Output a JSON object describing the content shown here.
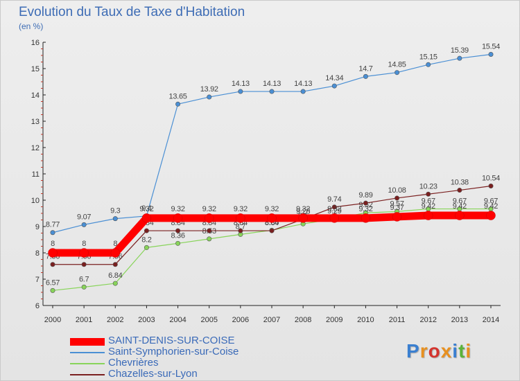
{
  "title": "Evolution du Taux de Taxe d'Habitation",
  "subtitle": "(en %)",
  "logo_text": "Proxiti",
  "chart_data": {
    "type": "line",
    "title": "Evolution du Taux de Taxe d'Habitation",
    "ylabel": "(en %)",
    "xlabel": "",
    "x": [
      "2000",
      "2001",
      "2002",
      "2003",
      "2004",
      "2005",
      "2006",
      "2007",
      "2008",
      "2009",
      "2010",
      "2011",
      "2012",
      "2013",
      "2014"
    ],
    "ylim": [
      6,
      16
    ],
    "yticks": [
      "6",
      "7",
      "8",
      "9",
      "10",
      "11",
      "12",
      "13",
      "14",
      "15",
      "16"
    ],
    "grid": false,
    "legend_position": "bottom-left",
    "series": [
      {
        "name": "SAINT-DENIS-SUR-COISE",
        "color": "#ff0000",
        "values": [
          8,
          8,
          8,
          9.32,
          9.32,
          9.32,
          9.32,
          9.32,
          9.32,
          9.32,
          9.32,
          9.37,
          9.42,
          9.42,
          9.42
        ],
        "labels": [
          "8",
          "8",
          "8",
          "9.32",
          "9.32",
          "9.32",
          "9.32",
          "9.32",
          "9.32",
          "9.32",
          "9.32",
          "9.37",
          "9.42",
          "9.42",
          "9.42"
        ]
      },
      {
        "name": "Saint-Symphorien-sur-Coise",
        "color": "#4a8fd4",
        "values": [
          8.77,
          9.07,
          9.3,
          9.4,
          13.65,
          13.92,
          14.13,
          14.13,
          14.13,
          14.34,
          14.7,
          14.85,
          15.15,
          15.39,
          15.54
        ],
        "labels": [
          "8.77",
          "9.07",
          "9.3",
          "9.4",
          "13.65",
          "13.92",
          "14.13",
          "14.13",
          "14.13",
          "14.34",
          "14.7",
          "14.85",
          "15.15",
          "15.39",
          "15.54"
        ]
      },
      {
        "name": "Chevrières",
        "color": "#88d45a",
        "values": [
          6.57,
          6.7,
          6.84,
          8.2,
          8.36,
          8.53,
          8.7,
          8.86,
          9.1,
          9.29,
          9.52,
          9.57,
          9.67,
          9.67,
          9.67
        ],
        "labels": [
          "6.57",
          "6.7",
          "6.84",
          "8.2",
          "8.36",
          "8.53",
          "8.7",
          "8.86",
          "9.1",
          "9.29",
          "9.52",
          "9.57",
          "9.67",
          "9.67",
          "9.67"
        ]
      },
      {
        "name": "Chazelles-sur-Lyon",
        "color": "#7a1f1f",
        "values": [
          7.56,
          7.56,
          7.56,
          8.84,
          8.84,
          8.84,
          8.84,
          8.84,
          9.28,
          9.74,
          9.89,
          10.08,
          10.23,
          10.38,
          10.54
        ],
        "labels": [
          "7.56",
          "7.56",
          "7.56",
          "8.84",
          "8.84",
          "8.84",
          "8.84",
          "8.84",
          "9.28",
          "9.74",
          "9.89",
          "10.08",
          "10.23",
          "10.38",
          "10.54"
        ]
      }
    ]
  }
}
